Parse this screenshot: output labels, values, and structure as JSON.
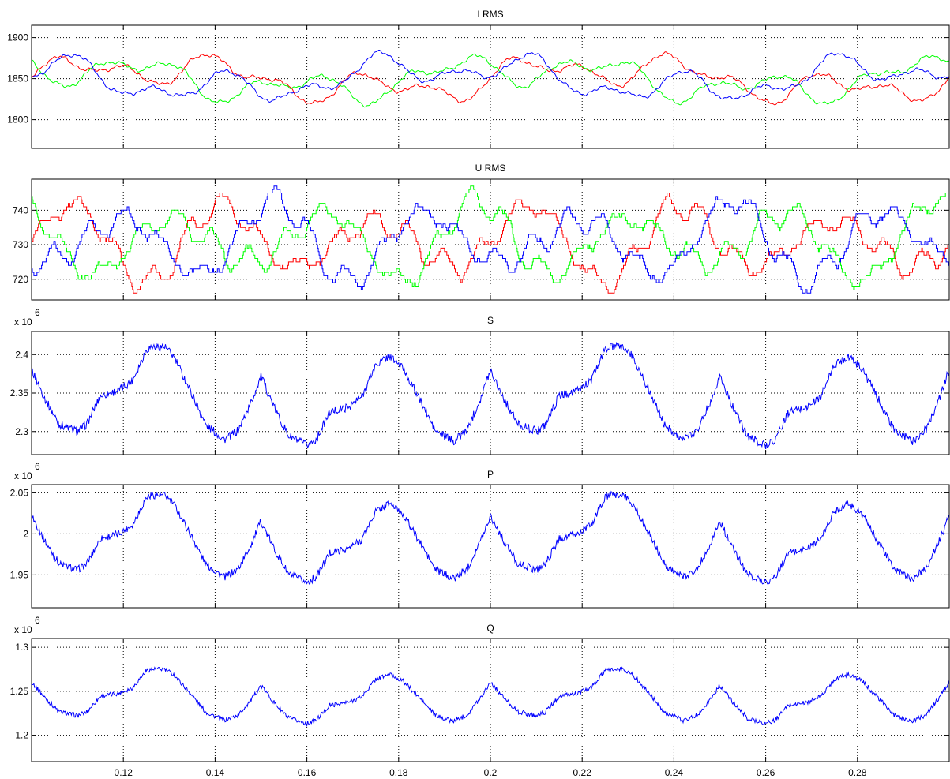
{
  "chart_data": [
    {
      "type": "line",
      "title": "I RMS",
      "exponent": "",
      "xlim": [
        0.1,
        0.3
      ],
      "ylim": [
        1765,
        1915
      ],
      "yticks": [
        1800,
        1850,
        1900
      ],
      "ytick_labels": [
        "1800",
        "1850",
        "1900"
      ],
      "grid": true,
      "colors": {
        "red": "#ff0000",
        "green": "#00ff00",
        "blue": "#0000ff"
      }
    },
    {
      "type": "line",
      "title": "U RMS",
      "exponent": "",
      "xlim": [
        0.1,
        0.3
      ],
      "ylim": [
        714,
        749
      ],
      "yticks": [
        720,
        730,
        740
      ],
      "ytick_labels": [
        "720",
        "730",
        "740"
      ],
      "grid": true,
      "colors": {
        "red": "#ff0000",
        "green": "#00ff00",
        "blue": "#0000ff"
      }
    },
    {
      "type": "line",
      "title": "S",
      "exponent": "6",
      "exponent_base": "x 10",
      "xlim": [
        0.1,
        0.3
      ],
      "ylim": [
        2.27,
        2.43
      ],
      "yticks": [
        2.3,
        2.35,
        2.4
      ],
      "ytick_labels": [
        "2.3",
        "2.35",
        "2.4"
      ],
      "grid": true,
      "colors": {
        "blue": "#0000ff"
      }
    },
    {
      "type": "line",
      "title": "P",
      "exponent": "6",
      "exponent_base": "x 10",
      "xlim": [
        0.1,
        0.3
      ],
      "ylim": [
        1.91,
        2.06
      ],
      "yticks": [
        1.95,
        2.0,
        2.05
      ],
      "ytick_labels": [
        "1.95",
        "2",
        "2.05"
      ],
      "grid": true,
      "colors": {
        "blue": "#0000ff"
      }
    },
    {
      "type": "line",
      "title": "Q",
      "exponent": "6",
      "exponent_base": "x 10",
      "xlim": [
        0.1,
        0.3
      ],
      "ylim": [
        1.17,
        1.31
      ],
      "yticks": [
        1.2,
        1.25,
        1.3
      ],
      "ytick_labels": [
        "1.2",
        "1.25",
        "1.3"
      ],
      "grid": true,
      "colors": {
        "blue": "#0000ff"
      }
    }
  ],
  "x_axis": {
    "ticks": [
      0.12,
      0.14,
      0.16,
      0.18,
      0.2,
      0.22,
      0.24,
      0.26,
      0.28
    ],
    "tick_labels": [
      "0.12",
      "0.14",
      "0.16",
      "0.18",
      "0.2",
      "0.22",
      "0.24",
      "0.26",
      "0.28"
    ]
  }
}
